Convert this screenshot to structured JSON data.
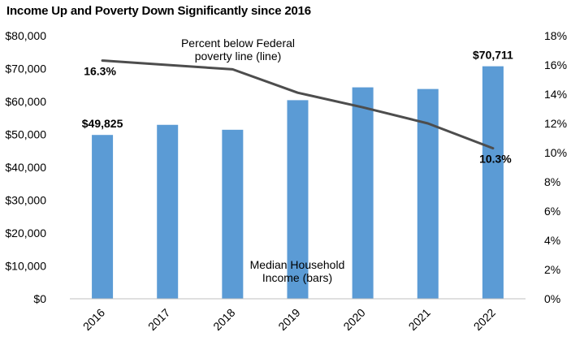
{
  "chart_data": {
    "type": "bar",
    "title": "Income Up and Poverty Down Significantly since 2016",
    "categories": [
      "2016",
      "2017",
      "2018",
      "2019",
      "2020",
      "2021",
      "2022"
    ],
    "series": [
      {
        "type": "bar",
        "axis": "left",
        "color": "#5b9bd5",
        "values": [
          49825,
          52900,
          51400,
          60400,
          64300,
          63800,
          70711
        ]
      },
      {
        "type": "line",
        "axis": "right",
        "color": "#4d4d4d",
        "values": [
          16.3,
          16.0,
          15.7,
          14.1,
          13.1,
          12.0,
          10.3
        ]
      }
    ],
    "left_axis": {
      "ylim": [
        0,
        80000
      ],
      "ticks": [
        "$0",
        "$10,000",
        "$20,000",
        "$30,000",
        "$40,000",
        "$50,000",
        "$60,000",
        "$70,000",
        "$80,000"
      ]
    },
    "right_axis": {
      "ylim": [
        0,
        18
      ],
      "ticks": [
        "0%",
        "2%",
        "4%",
        "6%",
        "8%",
        "10%",
        "12%",
        "14%",
        "16%",
        "18%"
      ]
    },
    "data_labels": [
      {
        "series": 0,
        "index": 0,
        "text": "$49,825"
      },
      {
        "series": 0,
        "index": 6,
        "text": "$70,711"
      },
      {
        "series": 1,
        "index": 0,
        "text": "16.3%"
      },
      {
        "series": 1,
        "index": 6,
        "text": "10.3%"
      }
    ],
    "annotations": {
      "line_note": [
        "Percent below Federal",
        "poverty line (line)"
      ],
      "bar_note": [
        "Median Household",
        "Income (bars)"
      ]
    },
    "grid": false,
    "legend": "none"
  }
}
